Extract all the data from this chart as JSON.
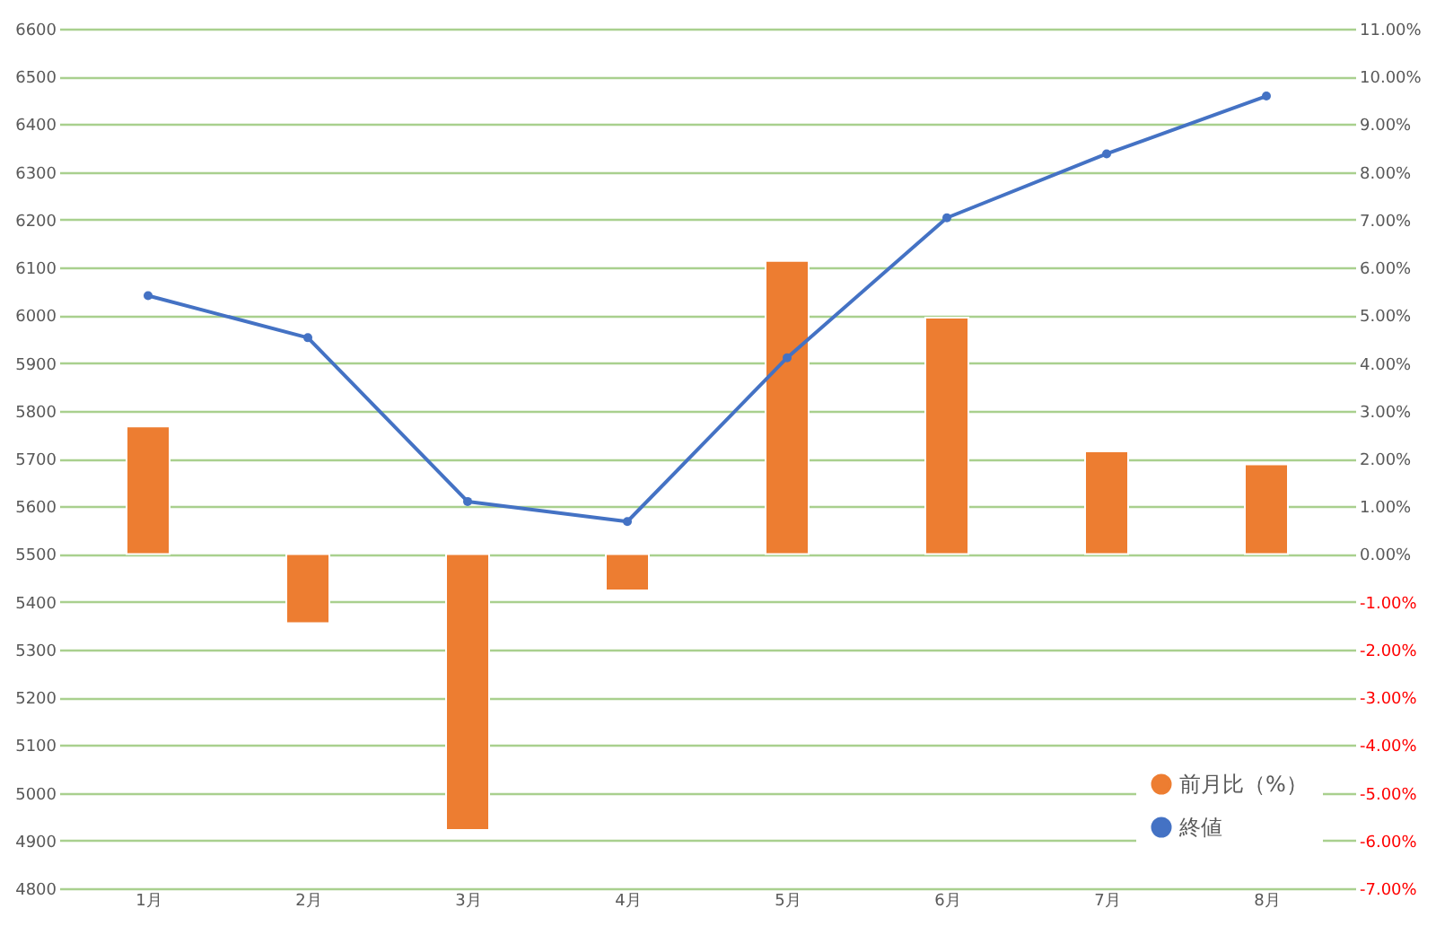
{
  "chart_data": {
    "type": "bar",
    "categories": [
      "1月",
      "2月",
      "3月",
      "4月",
      "5月",
      "6月",
      "7月",
      "8月"
    ],
    "series": [
      {
        "name": "前月比（%）",
        "axis": "y2",
        "color": "#ed7d31",
        "values": [
          2.67,
          -1.45,
          -5.78,
          -0.76,
          6.14,
          4.95,
          2.15,
          1.88
        ]
      },
      {
        "name": "終値",
        "type": "line",
        "color": "#4472c4",
        "values": [
          6041,
          5953,
          5610,
          5568,
          5911,
          6204,
          6338,
          6459
        ]
      }
    ],
    "ylim": [
      4800,
      6600
    ],
    "yticks": [
      4800,
      4900,
      5000,
      5100,
      5200,
      5300,
      5400,
      5500,
      5600,
      5700,
      5800,
      5900,
      6000,
      6100,
      6200,
      6300,
      6400,
      6500,
      6600
    ],
    "y2lim": [
      -7,
      11
    ],
    "y2ticks": [
      {
        "value": -7,
        "label": "-7.00%"
      },
      {
        "value": -6,
        "label": "-6.00%"
      },
      {
        "value": -5,
        "label": "-5.00%"
      },
      {
        "value": -4,
        "label": "-4.00%"
      },
      {
        "value": -3,
        "label": "-3.00%"
      },
      {
        "value": -2,
        "label": "-2.00%"
      },
      {
        "value": -1,
        "label": "-1.00%"
      },
      {
        "value": 0,
        "label": "0.00%"
      },
      {
        "value": 1,
        "label": "1.00%"
      },
      {
        "value": 2,
        "label": "2.00%"
      },
      {
        "value": 3,
        "label": "3.00%"
      },
      {
        "value": 4,
        "label": "4.00%"
      },
      {
        "value": 5,
        "label": "5.00%"
      },
      {
        "value": 6,
        "label": "6.00%"
      },
      {
        "value": 7,
        "label": "7.00%"
      },
      {
        "value": 8,
        "label": "8.00%"
      },
      {
        "value": 9,
        "label": "9.00%"
      },
      {
        "value": 10,
        "label": "10.00%"
      },
      {
        "value": 11,
        "label": "11.00%"
      }
    ],
    "grid": true,
    "legend": "bottom right",
    "marker": "circle",
    "line_style": "solid"
  }
}
